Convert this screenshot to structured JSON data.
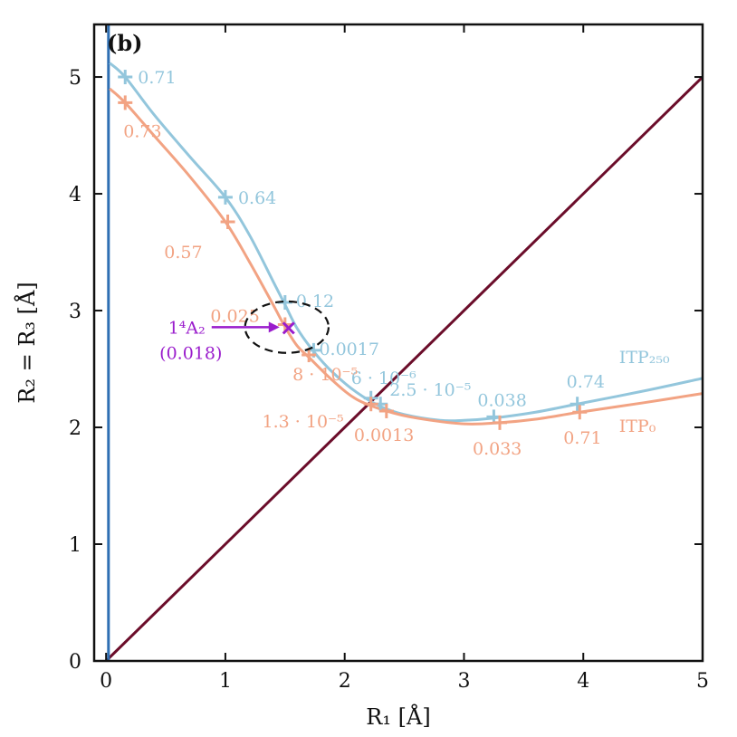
{
  "chart_data": {
    "type": "line",
    "panel_label": "(b)",
    "xlabel": "R₁ [Å]",
    "ylabel": "R₂ = R₃ [Å]",
    "xlim": [
      -0.1,
      5
    ],
    "ylim": [
      0,
      5.45
    ],
    "xticks": [
      0,
      1,
      2,
      3,
      4,
      5
    ],
    "yticks": [
      0,
      1,
      2,
      3,
      4,
      5
    ],
    "colors": {
      "itp250": "#93c6dc",
      "itp0": "#f2a383",
      "diagonal": "#6b0d2a",
      "vertical": "#2f6fb3",
      "marker": "#9a1ccc",
      "axis": "#111111"
    },
    "series": [
      {
        "name": "ITP₂₅₀",
        "legend_label": "ITP₂₅₀",
        "x": [
          0.03,
          0.16,
          0.4,
          0.7,
          1.0,
          1.2,
          1.4,
          1.5,
          1.6,
          1.74,
          1.9,
          2.1,
          2.3,
          2.5,
          2.8,
          3.0,
          3.25,
          3.6,
          3.95,
          4.5,
          5.0
        ],
        "y": [
          5.12,
          5.0,
          4.68,
          4.32,
          3.97,
          3.65,
          3.25,
          3.05,
          2.85,
          2.65,
          2.47,
          2.3,
          2.18,
          2.11,
          2.06,
          2.06,
          2.08,
          2.13,
          2.2,
          2.31,
          2.42
        ],
        "markers": [
          {
            "x": 0.16,
            "y": 5.0,
            "label": "0.71"
          },
          {
            "x": 1.0,
            "y": 3.97,
            "label": "0.64"
          },
          {
            "x": 1.5,
            "y": 3.07,
            "label": "0.12"
          },
          {
            "x": 1.74,
            "y": 2.66,
            "label": "0.0017"
          },
          {
            "x": 2.22,
            "y": 2.25,
            "label": "6 · 10⁻⁶"
          },
          {
            "x": 2.3,
            "y": 2.2,
            "label": "2.5 · 10⁻⁵"
          },
          {
            "x": 3.25,
            "y": 2.09,
            "label": "0.038"
          },
          {
            "x": 3.95,
            "y": 2.2,
            "label": "0.74"
          }
        ]
      },
      {
        "name": "ITP₀",
        "legend_label": "ITP₀",
        "x": [
          0.03,
          0.16,
          0.4,
          0.7,
          1.0,
          1.2,
          1.4,
          1.5,
          1.6,
          1.7,
          1.9,
          2.1,
          2.35,
          2.6,
          3.0,
          3.3,
          3.6,
          3.97,
          4.5,
          5.0
        ],
        "y": [
          4.9,
          4.78,
          4.5,
          4.15,
          3.76,
          3.42,
          3.05,
          2.86,
          2.7,
          2.6,
          2.4,
          2.24,
          2.14,
          2.08,
          2.03,
          2.04,
          2.07,
          2.13,
          2.21,
          2.29
        ],
        "markers": [
          {
            "x": 0.16,
            "y": 4.78,
            "label": "0.73"
          },
          {
            "x": 1.02,
            "y": 3.76,
            "label": "0.57"
          },
          {
            "x": 1.5,
            "y": 2.88,
            "label": "0.025"
          },
          {
            "x": 1.7,
            "y": 2.62,
            "label": "8 · 10⁻⁵"
          },
          {
            "x": 2.22,
            "y": 2.2,
            "label": "1.3 · 10⁻⁵"
          },
          {
            "x": 2.35,
            "y": 2.14,
            "label": "0.0013"
          },
          {
            "x": 3.3,
            "y": 2.04,
            "label": "0.033"
          },
          {
            "x": 3.97,
            "y": 2.13,
            "label": "0.71"
          }
        ]
      }
    ],
    "reference_lines": [
      {
        "name": "diagonal",
        "x": [
          0,
          5
        ],
        "y": [
          0,
          5
        ]
      },
      {
        "name": "vertical",
        "x": [
          0.02,
          0.02
        ],
        "y": [
          0,
          5.45
        ]
      }
    ],
    "special_point": {
      "x": 1.53,
      "y": 2.85,
      "label": "1⁴A₂",
      "sublabel": "(0.018)",
      "circle_radius": [
        0.35,
        0.22
      ]
    }
  }
}
